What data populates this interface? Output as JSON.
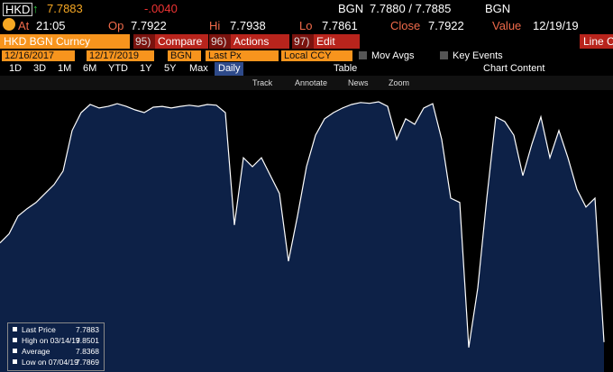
{
  "header": {
    "ticker": "HKD",
    "arrow": "↑",
    "price": "7.7883",
    "change": "-.0040",
    "bid_source": "BGN",
    "bid_ask": "7.7880 / 7.7885",
    "ask_source": "BGN"
  },
  "stats": [
    {
      "label": "At",
      "value": "21:05"
    },
    {
      "label": "Op",
      "value": "7.7922"
    },
    {
      "label": "Hi",
      "value": "7.7938"
    },
    {
      "label": "Lo",
      "value": "7.7861"
    },
    {
      "label": "Close",
      "value": "7.7922"
    },
    {
      "label": "Value",
      "value": "12/19/19"
    }
  ],
  "toolbar": {
    "security": "HKD BGN Curncy",
    "buttons": [
      {
        "num": "95)",
        "label": "Compare"
      },
      {
        "num": "96)",
        "label": "Actions"
      },
      {
        "num": "97)",
        "label": "Edit"
      }
    ],
    "right": "Line C"
  },
  "settings": {
    "start": "12/16/2017",
    "end": "12/17/2019",
    "source": "BGN",
    "field": "Last Px",
    "currency": "Local CCY",
    "mov_avgs": "Mov Avgs",
    "key_events": "Key Events"
  },
  "periods": [
    "1D",
    "3D",
    "1M",
    "6M",
    "YTD",
    "1Y",
    "5Y",
    "Max"
  ],
  "frequency": "Daily",
  "table": "Table",
  "chart_content": "Chart Content",
  "tools": [
    "Track",
    "Annotate",
    "News",
    "Zoom"
  ],
  "legend": [
    {
      "label": "Last Price",
      "value": "7.7883"
    },
    {
      "label": "High on 03/14/19",
      "value": "7.8501"
    },
    {
      "label": "Average",
      "value": "7.8368"
    },
    {
      "label": "Low on 07/04/19",
      "value": "7.7869"
    }
  ],
  "chart_data": {
    "type": "area",
    "color": "#ffffff",
    "fill": "#0d2147",
    "categories": [
      null,
      null,
      null,
      null,
      null,
      null,
      null,
      null,
      null,
      null,
      null,
      null,
      null,
      null,
      null,
      null,
      null,
      null,
      null,
      null,
      null,
      null,
      null,
      null,
      null,
      null,
      null,
      null,
      null,
      null,
      null,
      null,
      null,
      null,
      null,
      null,
      null,
      null,
      null,
      null,
      null,
      null,
      null,
      null,
      null,
      null,
      null,
      null,
      null,
      null,
      null,
      null,
      null,
      null,
      null,
      null,
      null,
      null,
      null,
      null,
      null,
      null,
      null,
      null,
      null,
      null,
      null,
      null
    ],
    "values": [
      7.8138,
      7.8161,
      7.8207,
      7.8226,
      7.8242,
      7.8265,
      7.8288,
      7.8323,
      7.8427,
      7.8473,
      7.8494,
      7.8485,
      7.8489,
      7.8496,
      7.8489,
      7.848,
      7.8473,
      7.8487,
      7.8489,
      7.8485,
      7.8489,
      7.8492,
      7.8489,
      7.8494,
      7.8492,
      7.8473,
      7.8184,
      7.8357,
      7.8334,
      7.8357,
      7.8311,
      7.8265,
      7.8091,
      7.8207,
      7.8334,
      7.8415,
      7.8457,
      7.8473,
      7.8485,
      7.8494,
      7.8499,
      7.8497,
      7.8501,
      7.8489,
      7.8404,
      7.8457,
      7.8443,
      7.8485,
      7.8496,
      7.8404,
      7.8253,
      7.8242,
      7.7869,
      7.8022,
      7.8253,
      7.8462,
      7.845,
      7.8415,
      7.8311,
      7.8392,
      7.8462,
      7.8357,
      7.8427,
      7.8357,
      7.8276,
      7.823,
      7.8253,
      7.7883
    ],
    "ylim": [
      7.7806,
      7.8531
    ]
  }
}
